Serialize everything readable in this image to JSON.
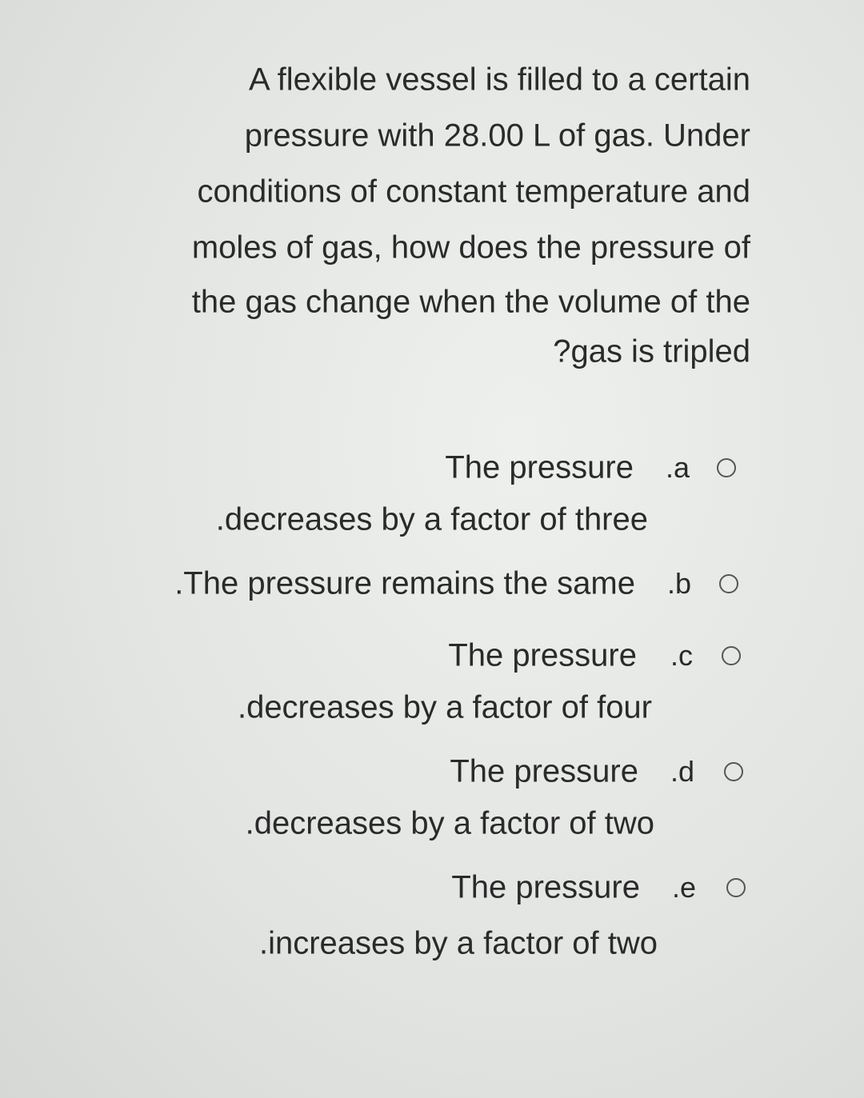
{
  "question": {
    "lines": [
      "A flexible vessel is filled to a certain",
      "pressure with 28.00 L of gas. Under",
      "conditions of constant temperature and",
      "moles of gas, how does the pressure of",
      "the gas change when the volume of the",
      "?gas is tripled"
    ]
  },
  "options": [
    {
      "letter": ".a",
      "lines": [
        "The pressure",
        ".decreases by a factor of three"
      ]
    },
    {
      "letter": ".b",
      "lines": [
        ".The pressure remains the same"
      ]
    },
    {
      "letter": ".c",
      "lines": [
        "The pressure",
        ".decreases by a factor of four"
      ]
    },
    {
      "letter": ".d",
      "lines": [
        "The pressure",
        ".decreases by a factor of two"
      ]
    },
    {
      "letter": ".e",
      "lines": [
        "The pressure",
        ".increases by a factor of two"
      ]
    }
  ]
}
